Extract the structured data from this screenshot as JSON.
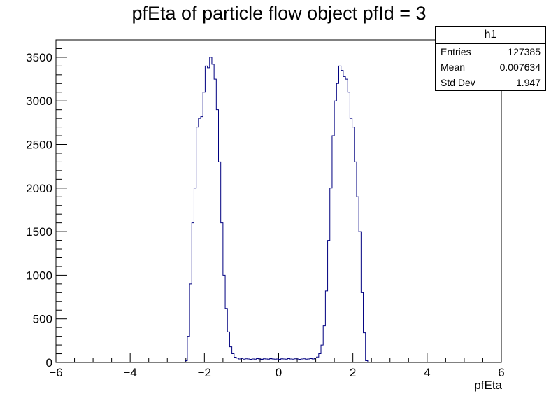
{
  "chart_data": {
    "type": "histogram",
    "title": "pfEta of particle flow object pfId = 3",
    "xlabel": "pfEta",
    "ylabel": "",
    "xlim": [
      -6,
      6
    ],
    "ylim": [
      0,
      3700
    ],
    "xticks": [
      -6,
      -4,
      -2,
      0,
      2,
      4,
      6
    ],
    "xtick_labels": [
      "−6",
      "−4",
      "−2",
      "0",
      "2",
      "4",
      "6"
    ],
    "yticks": [
      0,
      500,
      1000,
      1500,
      2000,
      2500,
      3000,
      3500
    ],
    "ytick_labels": [
      "0",
      "500",
      "1000",
      "1500",
      "2000",
      "2500",
      "3000",
      "3500"
    ],
    "bins": {
      "start": -2.52,
      "width": 0.06
    },
    "counts": [
      20,
      300,
      900,
      1600,
      2000,
      2700,
      2800,
      2820,
      3100,
      3400,
      3380,
      3500,
      3420,
      3250,
      2900,
      2300,
      1600,
      1000,
      620,
      350,
      180,
      100,
      60,
      50,
      40,
      45,
      38,
      42,
      40,
      36,
      40,
      38,
      44,
      40,
      36,
      42,
      40,
      38,
      44,
      40,
      38,
      40,
      36,
      42,
      40,
      38,
      44,
      40,
      38,
      42,
      40,
      36,
      40,
      42,
      38,
      40,
      44,
      40,
      52,
      62,
      100,
      200,
      420,
      820,
      1400,
      2000,
      2600,
      3000,
      3200,
      3400,
      3350,
      3280,
      3250,
      3100,
      2800,
      2700,
      2300,
      1900,
      1500,
      800,
      340,
      20
    ],
    "stats": {
      "name": "h1",
      "entries_label": "Entries",
      "entries": "127385",
      "mean_label": "Mean",
      "mean": "0.007634",
      "std_label": "Std Dev",
      "std": "1.947"
    }
  }
}
